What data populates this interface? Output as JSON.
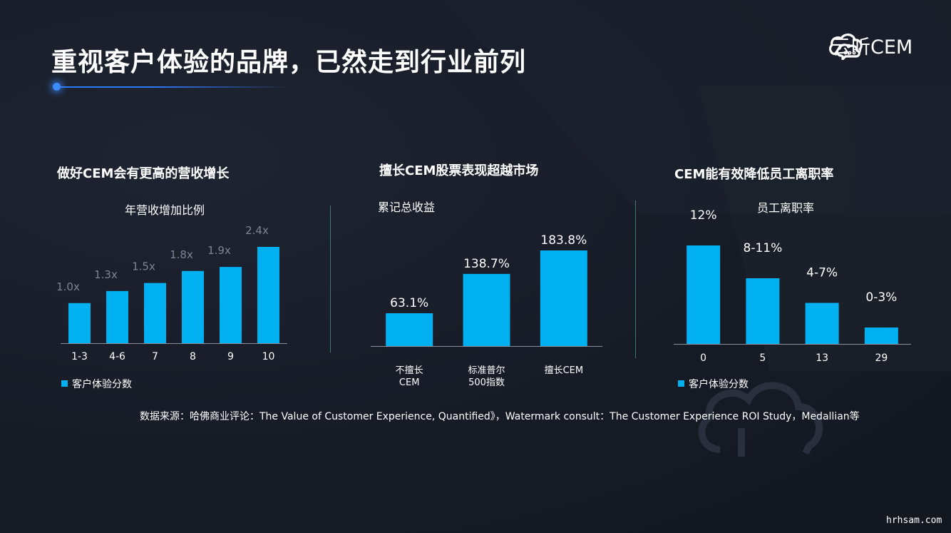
{
  "title": "重视客户体验的品牌，已然走到行业前列",
  "logo": {
    "text": "云听CEM",
    "icon": "cloud-chat-icon"
  },
  "colors": {
    "bar": "#00b0f0",
    "accent": "#2f7bff",
    "divider": "#3a7d66",
    "background": "#171b26"
  },
  "panels": [
    {
      "title": "做好CEM会有更高的营收增长",
      "subtitle": "年营收增加比例",
      "legend": "客户体验分数"
    },
    {
      "title": "擅长CEM股票表现超越市场",
      "subtitle": "累记总收益"
    },
    {
      "title": "CEM能有效降低员工离职率",
      "subtitle": "员工离职率",
      "legend": "客户体验分数"
    }
  ],
  "chart_data": [
    {
      "type": "bar",
      "title": "做好CEM会有更高的营收增长",
      "ylabel": "年营收增加比例",
      "categories": [
        "1-3",
        "4-6",
        "7",
        "8",
        "9",
        "10"
      ],
      "values": [
        1.0,
        1.3,
        1.5,
        1.8,
        1.9,
        2.4
      ],
      "data_labels": [
        "1.0x",
        "1.3x",
        "1.5x",
        "1.8x",
        "1.9x",
        "2.4x"
      ],
      "legend": "客户体验分数",
      "ylim": [
        0,
        2.4
      ]
    },
    {
      "type": "bar",
      "title": "擅长CEM股票表现超越市场",
      "ylabel": "累记总收益",
      "categories": [
        "不擅长\nCEM",
        "标准普尔\n500指数",
        "擅长CEM"
      ],
      "values": [
        63.1,
        138.7,
        183.8
      ],
      "data_labels": [
        "63.1%",
        "138.7%",
        "183.8%"
      ],
      "ylim": [
        0,
        183.8
      ]
    },
    {
      "type": "bar",
      "title": "CEM能有效降低员工离职率",
      "ylabel": "员工离职率",
      "categories": [
        "0",
        "5",
        "13",
        "29"
      ],
      "values": [
        12,
        8,
        5,
        2
      ],
      "data_labels": [
        "12%",
        "8-11%",
        "4-7%",
        "0-3%"
      ],
      "legend": "客户体验分数",
      "ylim": [
        0,
        12
      ]
    }
  ],
  "source": "数据来源：哈佛商业评论：The Value of Customer Experience, Quantified》，Watermark consult：The Customer Experience ROI Study，Medallian等",
  "watermark": "hrhsam.com"
}
